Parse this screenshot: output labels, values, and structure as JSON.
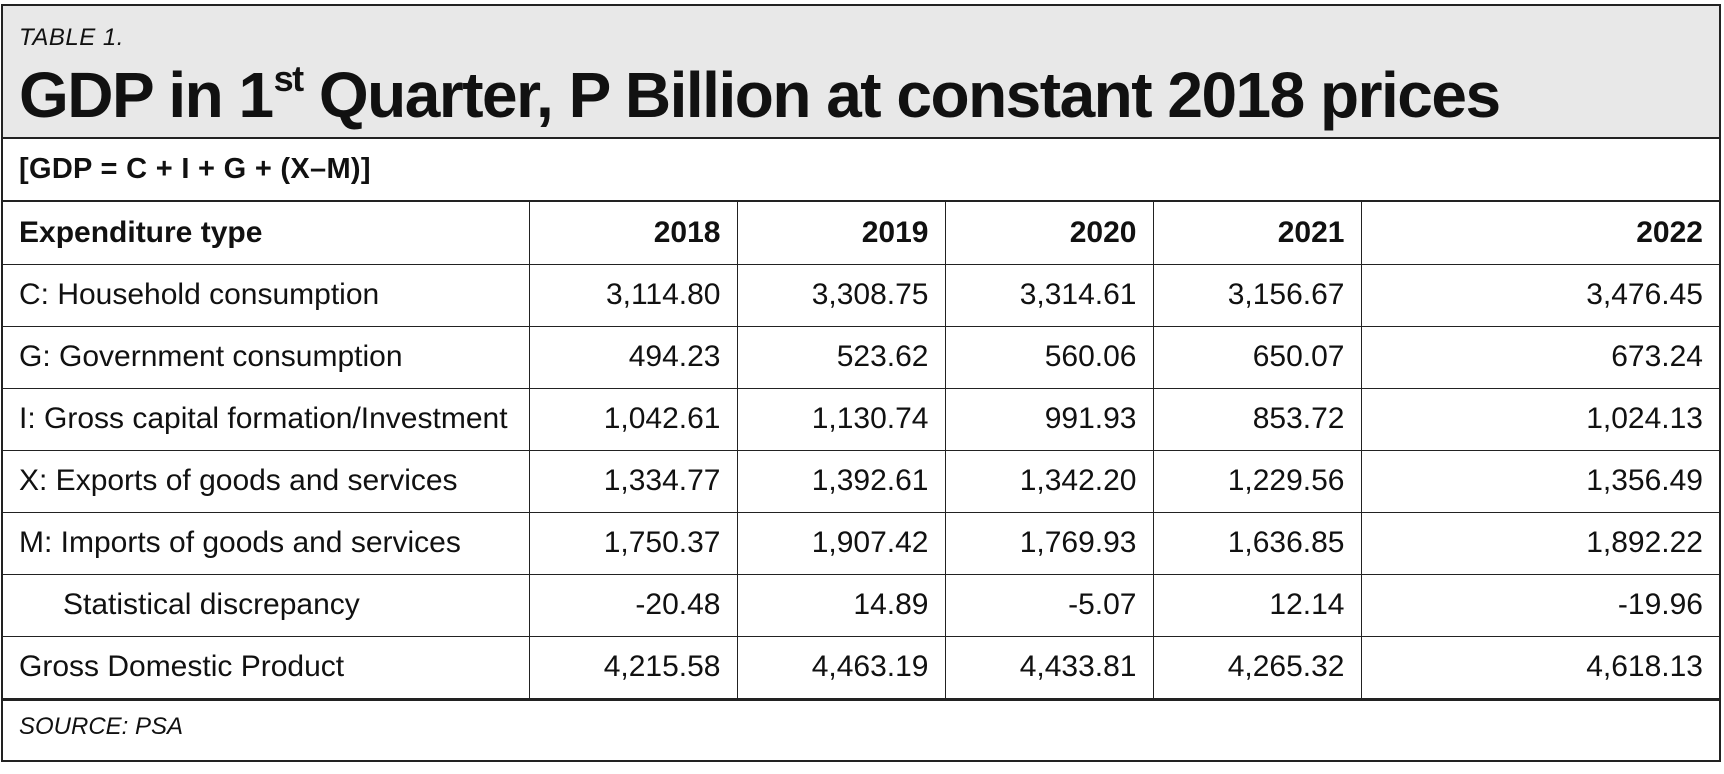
{
  "table": {
    "label": "TABLE 1.",
    "title_part1": "GDP in 1",
    "title_sup": "st",
    "title_part2": " Quarter, P Billion at constant 2018 prices",
    "formula": "[GDP = C + I + G + (X–M)]",
    "columns": [
      "Expenditure type",
      "2018",
      "2019",
      "2020",
      "2021",
      "2022"
    ],
    "rows": [
      {
        "label": "C: Household consumption",
        "values": [
          "3,114.80",
          "3,308.75",
          "3,314.61",
          "3,156.67",
          "3,476.45"
        ]
      },
      {
        "label": "G: Government consumption",
        "values": [
          "494.23",
          "523.62",
          "560.06",
          "650.07",
          "673.24"
        ]
      },
      {
        "label": "I: Gross capital formation/Investment",
        "values": [
          "1,042.61",
          "1,130.74",
          "991.93",
          "853.72",
          "1,024.13"
        ]
      },
      {
        "label": "X: Exports of goods and services",
        "values": [
          "1,334.77",
          "1,392.61",
          "1,342.20",
          "1,229.56",
          "1,356.49"
        ]
      },
      {
        "label": "M: Imports of goods and services",
        "values": [
          "1,750.37",
          "1,907.42",
          "1,769.93",
          "1,636.85",
          "1,892.22"
        ]
      },
      {
        "label": "Statistical discrepancy",
        "values": [
          "-20.48",
          "14.89",
          "-5.07",
          "12.14",
          "-19.96"
        ]
      },
      {
        "label": "Gross Domestic Product",
        "values": [
          "4,215.58",
          "4,463.19",
          "4,433.81",
          "4,265.32",
          "4,618.13"
        ]
      }
    ],
    "source": "SOURCE: PSA"
  }
}
